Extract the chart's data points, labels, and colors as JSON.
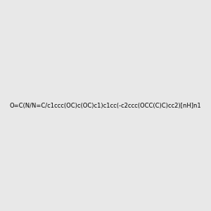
{
  "smiles": "O=C(N/N=C/c1ccc(OC)c(OC)c1)c1cc(-c2ccc(OCC(C)C)cc2)[nH]n1",
  "title": "",
  "bg_color": "#e8e8e8",
  "img_size": [
    300,
    300
  ]
}
